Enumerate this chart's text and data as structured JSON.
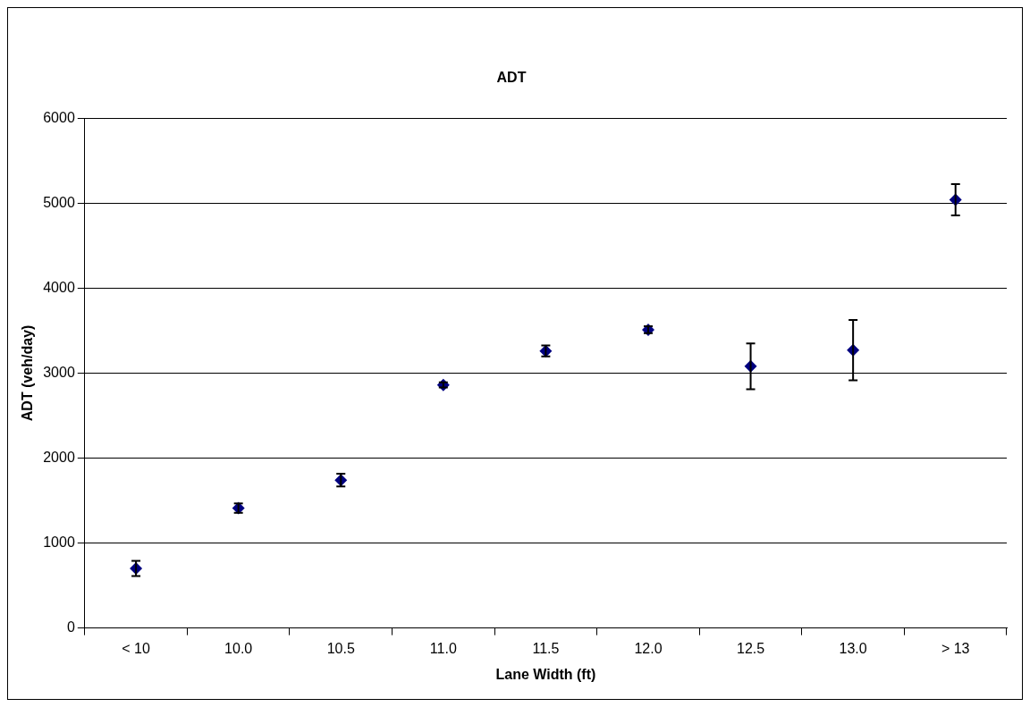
{
  "chart_data": {
    "type": "scatter",
    "title": "ADT",
    "xlabel": "Lane Width (ft)",
    "ylabel": "ADT (veh/day)",
    "categories": [
      "< 10",
      "10.0",
      "10.5",
      "11.0",
      "11.5",
      "12.0",
      "12.5",
      "13.0",
      "> 13"
    ],
    "values": [
      700,
      1410,
      1740,
      2860,
      3260,
      3510,
      3080,
      3270,
      5040
    ],
    "errors": [
      90,
      55,
      75,
      30,
      65,
      40,
      270,
      355,
      185
    ],
    "color": "#000080",
    "marker": "diamond",
    "ylim": [
      0,
      6000
    ],
    "yticks": [
      0,
      1000,
      2000,
      3000,
      4000,
      5000,
      6000
    ],
    "grid": "y",
    "legend": false
  }
}
